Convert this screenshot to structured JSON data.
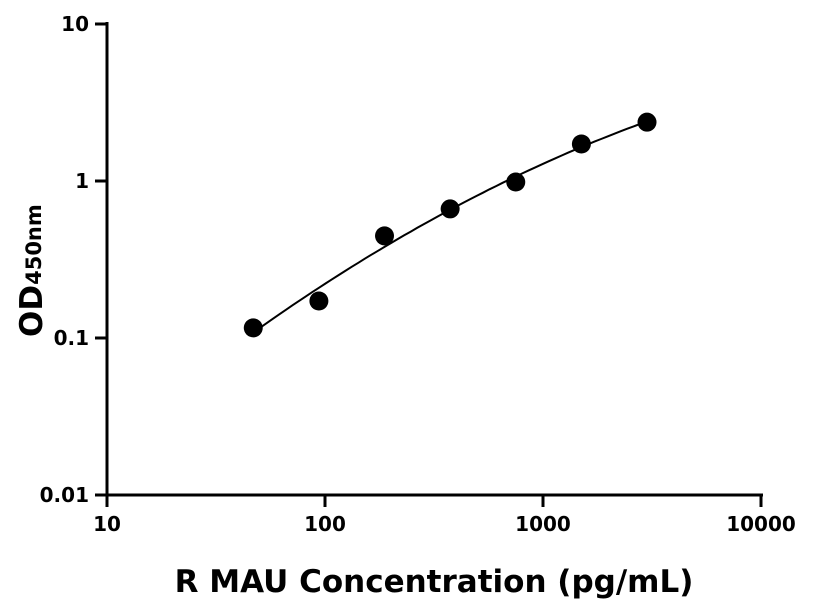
{
  "chart_data": {
    "type": "scatter",
    "title": "",
    "xlabel": "R MAU Concentration (pg/mL)",
    "ylabel": "OD",
    "ylabel_subscript": "450nm",
    "x_scale": "log",
    "y_scale": "log",
    "xlim": [
      10,
      10000
    ],
    "ylim": [
      0.01,
      10
    ],
    "x_ticks": [
      "10",
      "100",
      "1000",
      "10000"
    ],
    "y_ticks": [
      "0.01",
      "0.1",
      "1",
      "10"
    ],
    "grid": false,
    "legend": "none",
    "marker_color": "#000000",
    "fit_curve": true,
    "series": [
      {
        "x": [
          46.875,
          93.75,
          187.5,
          375,
          750,
          1500,
          3000
        ],
        "y": [
          0.116,
          0.172,
          0.447,
          0.664,
          0.985,
          1.72,
          2.37
        ]
      }
    ]
  }
}
